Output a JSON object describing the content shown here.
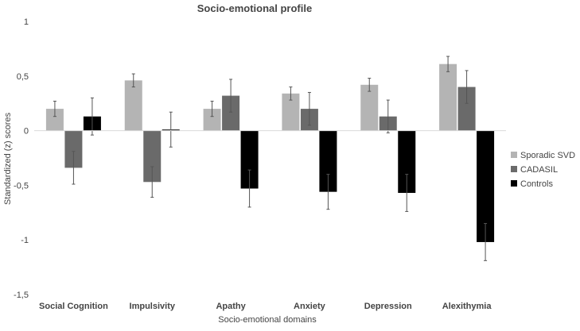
{
  "chart_data": {
    "type": "bar",
    "title": "Socio-emotional profile",
    "xlabel": "Socio-emotional domains",
    "ylabel": "Standardized (z) scores",
    "ylim": [
      -1.5,
      1
    ],
    "yticks": [
      1,
      0.5,
      0,
      -0.5,
      -1,
      -1.5
    ],
    "ytick_labels": [
      "1",
      "0,5",
      "0",
      "-0,5",
      "-1",
      "-1,5"
    ],
    "grid": false,
    "legend_position": "right",
    "categories": [
      "Social Cognition",
      "Impulsivity",
      "Apathy",
      "Anxiety",
      "Depression",
      "Alexithymia"
    ],
    "series": [
      {
        "name": "Sporadic SVD",
        "color": "#b4b4b4",
        "values": [
          0.2,
          0.46,
          0.2,
          0.34,
          0.42,
          0.61
        ],
        "errors": [
          0.07,
          0.06,
          0.07,
          0.06,
          0.06,
          0.07
        ]
      },
      {
        "name": "CADASIL",
        "color": "#6b6b6b",
        "values": [
          -0.34,
          -0.47,
          0.32,
          0.2,
          0.13,
          0.4
        ],
        "errors": [
          0.15,
          0.14,
          0.15,
          0.15,
          0.15,
          0.15
        ]
      },
      {
        "name": "Controls",
        "color": "#000000",
        "values": [
          0.13,
          0.01,
          -0.53,
          -0.56,
          -0.57,
          -1.02
        ],
        "errors": [
          0.17,
          0.16,
          0.17,
          0.16,
          0.17,
          0.17
        ]
      }
    ]
  }
}
